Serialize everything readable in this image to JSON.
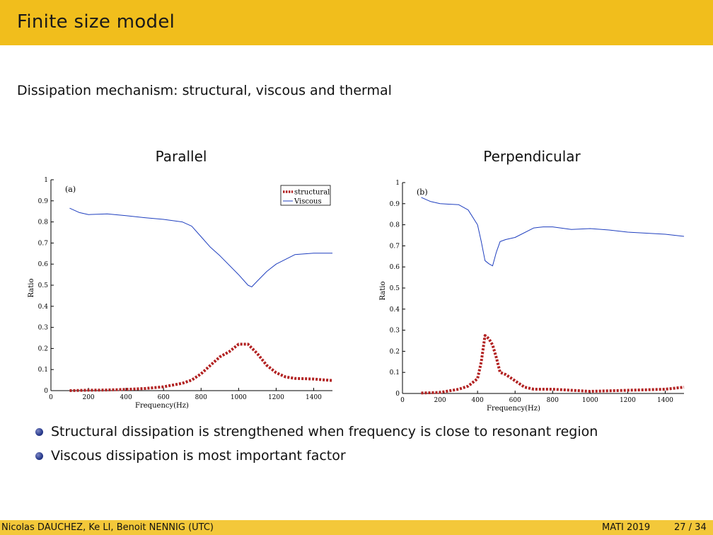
{
  "slide": {
    "title": "Finite size model",
    "subtitle": "Dissipation mechanism: structural, viscous and thermal",
    "headings": [
      "Parallel",
      "Perpendicular"
    ],
    "bullets": [
      "Structural dissipation is strengthened when frequency is close to resonant region",
      "Viscous dissipation is most important factor"
    ],
    "footer": {
      "authors": "Nicolas DAUCHEZ, Ke LI, Benoit NENNIG (UTC)",
      "conference": "MATI 2019",
      "page": "27 / 34"
    },
    "colors": {
      "title_bar": "#f1be1c",
      "footer_bar": "#f3c83a",
      "bullet": "#283a8c"
    }
  },
  "chart_data": [
    {
      "type": "line",
      "panel_label": "(a)",
      "xlabel": "Frequency(Hz)",
      "ylabel": "Ratio",
      "xlim": [
        0,
        1500
      ],
      "ylim": [
        0,
        1
      ],
      "xticks": [
        0,
        200,
        400,
        600,
        800,
        1000,
        1200,
        1400
      ],
      "yticks": [
        0,
        0.1,
        0.2,
        0.3,
        0.4,
        0.5,
        0.6,
        0.7,
        0.8,
        0.9,
        1
      ],
      "legend_position": "top-right",
      "grid": false,
      "series": [
        {
          "name": "structural",
          "color": "#b22222",
          "style": "dotted-thick",
          "x": [
            100,
            200,
            300,
            400,
            500,
            600,
            700,
            750,
            800,
            850,
            900,
            950,
            1000,
            1050,
            1100,
            1150,
            1200,
            1250,
            1300,
            1400,
            1500
          ],
          "y": [
            0.0,
            0.002,
            0.003,
            0.006,
            0.01,
            0.018,
            0.035,
            0.05,
            0.08,
            0.12,
            0.16,
            0.185,
            0.22,
            0.22,
            0.175,
            0.12,
            0.085,
            0.065,
            0.058,
            0.055,
            0.048
          ]
        },
        {
          "name": "Viscous",
          "color": "#1f3fbf",
          "style": "solid-thin",
          "x": [
            100,
            150,
            200,
            300,
            400,
            500,
            600,
            700,
            750,
            800,
            850,
            900,
            1000,
            1050,
            1070,
            1100,
            1150,
            1200,
            1300,
            1400,
            1500
          ],
          "y": [
            0.865,
            0.845,
            0.835,
            0.838,
            0.83,
            0.82,
            0.812,
            0.8,
            0.78,
            0.73,
            0.68,
            0.64,
            0.55,
            0.5,
            0.492,
            0.52,
            0.565,
            0.6,
            0.645,
            0.652,
            0.652
          ]
        }
      ]
    },
    {
      "type": "line",
      "panel_label": "(b)",
      "xlabel": "Frequency(Hz)",
      "ylabel": "Ratio",
      "xlim": [
        0,
        1500
      ],
      "ylim": [
        0,
        1
      ],
      "xticks": [
        0,
        200,
        400,
        600,
        800,
        1000,
        1200,
        1400
      ],
      "yticks": [
        0,
        0.1,
        0.2,
        0.3,
        0.4,
        0.5,
        0.6,
        0.7,
        0.8,
        0.9,
        1
      ],
      "grid": false,
      "series": [
        {
          "color": "#b22222",
          "style": "dotted-thick",
          "x": [
            100,
            200,
            300,
            350,
            400,
            420,
            440,
            460,
            480,
            500,
            520,
            550,
            600,
            650,
            700,
            800,
            1000,
            1200,
            1400,
            1500
          ],
          "y": [
            0.002,
            0.005,
            0.02,
            0.035,
            0.07,
            0.15,
            0.275,
            0.26,
            0.23,
            0.17,
            0.1,
            0.09,
            0.06,
            0.03,
            0.02,
            0.02,
            0.01,
            0.015,
            0.02,
            0.03
          ]
        },
        {
          "color": "#1f3fbf",
          "style": "solid-thin",
          "x": [
            100,
            150,
            200,
            300,
            350,
            400,
            420,
            440,
            460,
            480,
            500,
            520,
            550,
            600,
            700,
            750,
            800,
            900,
            1000,
            1100,
            1200,
            1300,
            1400,
            1500
          ],
          "y": [
            0.93,
            0.91,
            0.9,
            0.895,
            0.87,
            0.8,
            0.72,
            0.63,
            0.615,
            0.605,
            0.67,
            0.72,
            0.73,
            0.74,
            0.785,
            0.79,
            0.79,
            0.778,
            0.782,
            0.775,
            0.765,
            0.76,
            0.755,
            0.745
          ]
        }
      ]
    }
  ]
}
